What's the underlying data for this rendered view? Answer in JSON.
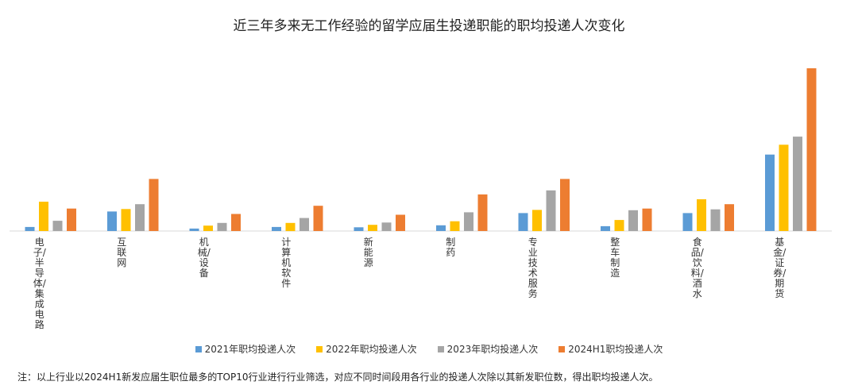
{
  "chart_data": {
    "type": "bar",
    "title": "近三年多来无工作经验的留学应届生投递职能的职均投递人次变化",
    "categories": [
      "电子/半导体/集成电路",
      "互联网",
      "机械/设备",
      "计算机软件",
      "新能源",
      "制药",
      "专业技术服务",
      "整车制造",
      "食品/饮料/酒水",
      "基金/证券/期货"
    ],
    "series": [
      {
        "name": "2021年职均投递人次",
        "color": "#5b9bd5",
        "values": [
          2.5,
          12,
          1.5,
          2.5,
          2.3,
          3.5,
          11,
          3,
          11,
          47
        ]
      },
      {
        "name": "2022年职均投递人次",
        "color": "#ffc000",
        "values": [
          18,
          13.5,
          3.3,
          5,
          3.8,
          6,
          13,
          6.8,
          19.5,
          53
        ]
      },
      {
        "name": "2023年职均投递人次",
        "color": "#a5a5a5",
        "values": [
          6.3,
          16.5,
          5,
          8,
          5.2,
          11.5,
          25,
          12.8,
          13.3,
          58
        ]
      },
      {
        "name": "2024H1职均投递人次",
        "color": "#ed7d31",
        "values": [
          13.8,
          32,
          10.5,
          15.5,
          10,
          22.5,
          32,
          13.8,
          16.5,
          100
        ]
      }
    ],
    "xlabel": "",
    "ylabel": "",
    "ylim": [
      0,
      100
    ],
    "grid": false,
    "legend": "bottom"
  },
  "footnote": "注：以上行业以2024H1新发应届生职位最多的TOP10行业进行行业筛选，对应不同时间段用各行业的投递人次除以其新发职位数，得出职均投递人次。"
}
